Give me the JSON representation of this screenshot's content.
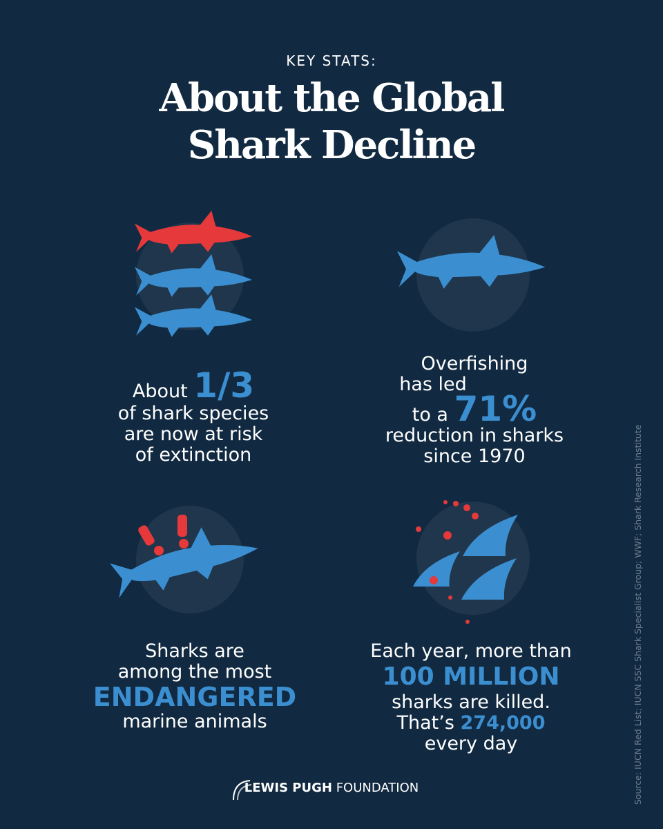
{
  "header": {
    "kicker": "KEY STATS:",
    "title_lines": [
      "About the Global",
      "Shark Decline"
    ]
  },
  "stats": [
    {
      "lines": [
        [
          "About",
          "1/3"
        ],
        [
          "of shark species"
        ],
        [
          "are now at risk"
        ],
        [
          "of extinction"
        ]
      ]
    },
    {
      "lines": [
        [
          "Overfishing"
        ],
        [
          "has led"
        ],
        [
          "to a",
          "71%"
        ],
        [
          "reduction in sharks"
        ],
        [
          "since 1970"
        ]
      ]
    },
    {
      "lines": [
        [
          "Sharks are"
        ],
        [
          "among the most"
        ],
        [
          "ENDANGERED"
        ],
        [
          "marine animals"
        ]
      ]
    },
    {
      "lines": [
        [
          "Each year, more than"
        ],
        [
          "100 MILLION"
        ],
        [
          "sharks are killed."
        ],
        [
          "That’s",
          "274,000"
        ],
        [
          "every day"
        ]
      ]
    }
  ],
  "source": "Source: IUCN Red List; IUCN SSC Shark Specialist Group; WWF; Shark Research Institute",
  "footer": {
    "brand_bold": "LEWIS PUGH",
    "brand_light": "FOUNDATION"
  }
}
